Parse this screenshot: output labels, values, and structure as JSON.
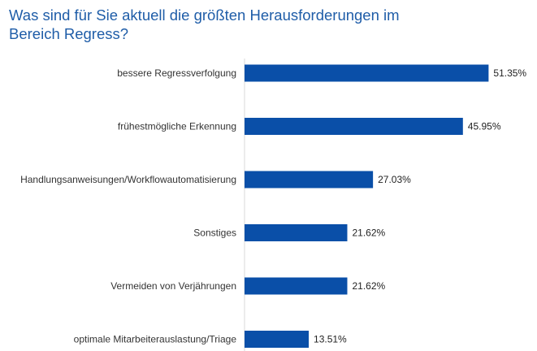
{
  "title": "Was sind für Sie aktuell die größten Herausforderungen im Bereich Regress?",
  "chart_data": {
    "type": "bar",
    "orientation": "horizontal",
    "title": "Was sind für Sie aktuell die größten Herausforderungen im Bereich Regress?",
    "xlabel": "",
    "ylabel": "",
    "xlim": [
      0,
      100
    ],
    "grid": false,
    "legend": "none",
    "bar_color": "#0a4fa8",
    "categories": [
      "bessere Regressverfolgung",
      "frühestmögliche Erkennung",
      "Handlungsanweisungen/Workflowautomatisierung",
      "Sonstiges",
      "Vermeiden von Verjährungen",
      "optimale Mitarbeiterauslastung/Triage"
    ],
    "values": [
      51.35,
      45.95,
      27.03,
      21.62,
      21.62,
      13.51
    ],
    "value_labels": [
      "51.35%",
      "45.95%",
      "27.03%",
      "21.62%",
      "21.62%",
      "13.51%"
    ]
  }
}
